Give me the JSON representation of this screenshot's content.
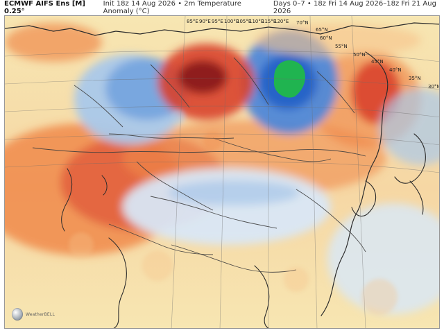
{
  "header": {
    "model": "ECMWF AIFS Ens [M] 0.25°",
    "init": "Init 18z 14 Aug 2026 • 2m Temperature Anomaly (°C)",
    "range": "Days 0–7 • 18z Fri 14 Aug 2026–18z Fri 21 Aug 2026"
  },
  "map": {
    "latitude_labels": [
      "70°N",
      "65°N",
      "60°N",
      "55°N",
      "50°N",
      "45°N",
      "40°N",
      "35°N",
      "30°N"
    ],
    "longitude_labels": [
      "85°E",
      "90°E",
      "95°E",
      "100°E",
      "105°E",
      "110°E",
      "115°E",
      "120°E"
    ],
    "colors": {
      "deep_red": "#8b1a1a",
      "red": "#d9422b",
      "orange": "#f08a4b",
      "light_orange": "#f6c38b",
      "pale_yellow": "#f7e6b2",
      "near_neutral": "#f2efe8",
      "pale_blue": "#d9e7f5",
      "light_blue": "#a9c8ea",
      "blue": "#4f88d8",
      "deep_blue": "#235fc6",
      "green": "#20b84a",
      "coast": "#2b2b2b",
      "border": "#3f3f3f"
    },
    "logo_text": "WeatherBELL"
  }
}
